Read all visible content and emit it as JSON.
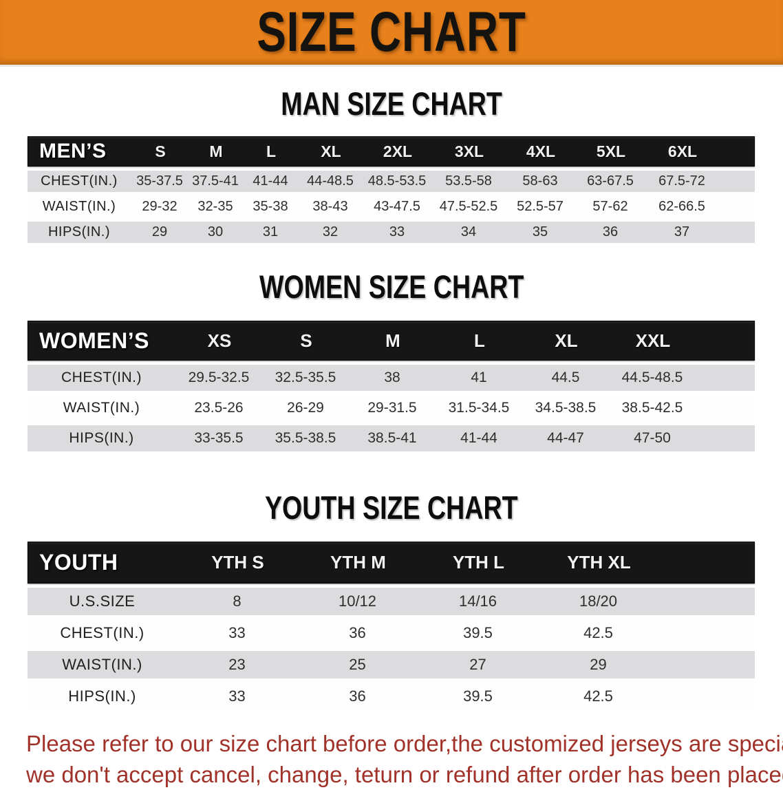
{
  "banner": {
    "title": "SIZE CHART"
  },
  "sections": [
    {
      "title": "MAN SIZE CHART",
      "header_label": "MEN’S",
      "columns": [
        "S",
        "M",
        "L",
        "XL",
        "2XL",
        "3XL",
        "4XL",
        "5XL",
        "6XL"
      ],
      "rows": [
        {
          "label": "CHEST(IN.)",
          "values": [
            "35-37.5",
            "37.5-41",
            "41-44",
            "44-48.5",
            "48.5-53.5",
            "53.5-58",
            "58-63",
            "63-67.5",
            "67.5-72"
          ]
        },
        {
          "label": "WAIST(IN.)",
          "values": [
            "29-32",
            "32-35",
            "35-38",
            "38-43",
            "43-47.5",
            "47.5-52.5",
            "52.5-57",
            "57-62",
            "62-66.5"
          ]
        },
        {
          "label": "HIPS(IN.)",
          "values": [
            "29",
            "30",
            "31",
            "32",
            "33",
            "34",
            "35",
            "36",
            "37"
          ]
        }
      ]
    },
    {
      "title": "WOMEN SIZE CHART",
      "header_label": "WOMEN’S",
      "columns": [
        "XS",
        "S",
        "M",
        "L",
        "XL",
        "XXL"
      ],
      "rows": [
        {
          "label": "CHEST(IN.)",
          "values": [
            "29.5-32.5",
            "32.5-35.5",
            "38",
            "41",
            "44.5",
            "44.5-48.5"
          ]
        },
        {
          "label": "WAIST(IN.)",
          "values": [
            "23.5-26",
            "26-29",
            "29-31.5",
            "31.5-34.5",
            "34.5-38.5",
            "38.5-42.5"
          ]
        },
        {
          "label": "HIPS(IN.)",
          "values": [
            "33-35.5",
            "35.5-38.5",
            "38.5-41",
            "41-44",
            "44-47",
            "47-50"
          ]
        }
      ]
    },
    {
      "title": "YOUTH SIZE CHART",
      "header_label": "YOUTH",
      "columns": [
        "YTH S",
        "YTH M",
        "YTH L",
        "YTH XL"
      ],
      "rows": [
        {
          "label": "U.S.SIZE",
          "values": [
            "8",
            "10/12",
            "14/16",
            "18/20"
          ]
        },
        {
          "label": "CHEST(IN.)",
          "values": [
            "33",
            "36",
            "39.5",
            "42.5"
          ]
        },
        {
          "label": "WAIST(IN.)",
          "values": [
            "23",
            "25",
            "27",
            "29"
          ]
        },
        {
          "label": "HIPS(IN.)",
          "values": [
            "33",
            "36",
            "39.5",
            "42.5"
          ]
        }
      ]
    }
  ],
  "disclaimer": {
    "line1": "Please refer to our size chart before order,the customized jerseys are special products,",
    "line2": "we don't accept cancel, change, teturn or refund after order has been placed!"
  },
  "colors": {
    "banner_bg": "#E8811B",
    "header_bar": "#161616",
    "row_gray": "#DCDCDE",
    "disclaimer_red": "#A1322A"
  }
}
